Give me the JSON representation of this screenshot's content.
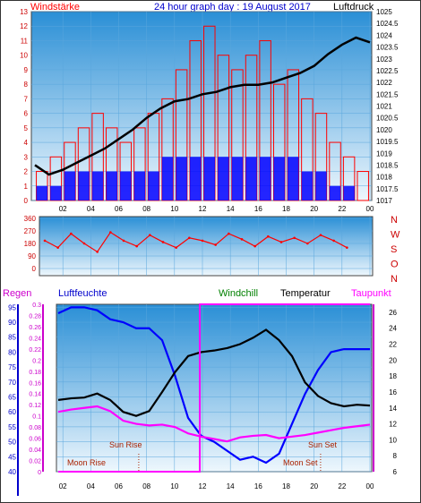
{
  "header": {
    "title": "24 hour graph day : 19 August 2017",
    "left_label": "Windstärke",
    "right_label": "Luftdruck"
  },
  "legend": {
    "regen": "Regen",
    "luftfeuchte": "Luftfeuchte",
    "windchill": "Windchill",
    "temperatur": "Temperatur",
    "taupunkt": "Taupunkt"
  },
  "annotations": {
    "moon_rise": "Moon Rise",
    "sun_rise": "Sun Rise",
    "moon_set": "Moon Set",
    "sun_set": "Sun Set"
  },
  "colors": {
    "wind_gust": "#ff0000",
    "wind_avg": "#0000ff",
    "pressure": "#000000",
    "direction": "#ff0000",
    "humidity": "#0000ff",
    "temperature": "#000000",
    "dewpoint": "#ff00ff",
    "windchill": "#008000",
    "rain": "#ff00ff",
    "sky_top": "#2a8fd6",
    "sky_bottom": "#eef7fd"
  },
  "chart_data": [
    {
      "type": "bar",
      "title": "24 hour graph day : 19 August 2017",
      "x_ticks": [
        "02",
        "04",
        "06",
        "08",
        "10",
        "12",
        "14",
        "16",
        "18",
        "20",
        "22",
        "00"
      ],
      "left_axis": {
        "label": "Windstärke",
        "ticks": [
          "0",
          "1",
          "2",
          "3",
          "4",
          "5",
          "6",
          "7",
          "8",
          "9",
          "10",
          "11",
          "12",
          "13"
        ],
        "ylim": [
          0,
          13
        ]
      },
      "right_axis": {
        "label": "Luftdruck",
        "ticks": [
          "1017",
          "1017.5",
          "1018",
          "1018.5",
          "1019",
          "1019.5",
          "1020",
          "1020.5",
          "1021",
          "1021.5",
          "1022",
          "1022.5",
          "1023",
          "1023.5",
          "1024",
          "1024.5",
          "1025"
        ],
        "ylim": [
          1017,
          1025
        ]
      },
      "series": [
        {
          "name": "Windstärke",
          "points": [
            [
              0,
              2
            ],
            [
              1,
              3
            ],
            [
              2,
              4
            ],
            [
              3,
              5
            ],
            [
              4,
              6
            ],
            [
              5,
              5
            ],
            [
              6,
              4
            ],
            [
              7,
              5
            ],
            [
              8,
              6
            ],
            [
              9,
              7
            ],
            [
              10,
              9
            ],
            [
              11,
              11
            ],
            [
              12,
              12
            ],
            [
              13,
              10
            ],
            [
              14,
              9
            ],
            [
              15,
              10
            ],
            [
              16,
              11
            ],
            [
              17,
              8
            ],
            [
              18,
              9
            ],
            [
              19,
              7
            ],
            [
              20,
              6
            ],
            [
              21,
              4
            ],
            [
              22,
              3
            ],
            [
              23,
              2
            ]
          ]
        },
        {
          "points": [
            [
              0,
              1
            ],
            [
              1,
              1
            ],
            [
              2,
              2
            ],
            [
              3,
              2
            ],
            [
              4,
              2
            ],
            [
              5,
              2
            ],
            [
              6,
              2
            ],
            [
              7,
              2
            ],
            [
              8,
              2
            ],
            [
              9,
              3
            ],
            [
              10,
              3
            ],
            [
              11,
              3
            ],
            [
              12,
              3
            ],
            [
              13,
              3
            ],
            [
              14,
              3
            ],
            [
              15,
              3
            ],
            [
              16,
              3
            ],
            [
              17,
              3
            ],
            [
              18,
              3
            ],
            [
              19,
              2
            ],
            [
              20,
              2
            ],
            [
              21,
              1
            ],
            [
              22,
              1
            ],
            [
              23,
              0
            ]
          ]
        },
        {
          "name": "Luftdruck",
          "points": [
            [
              0,
              1018.5
            ],
            [
              1,
              1018.1
            ],
            [
              2,
              1018.3
            ],
            [
              3,
              1018.6
            ],
            [
              4,
              1018.9
            ],
            [
              5,
              1019.2
            ],
            [
              6,
              1019.6
            ],
            [
              7,
              1020.0
            ],
            [
              8,
              1020.5
            ],
            [
              9,
              1020.9
            ],
            [
              10,
              1021.2
            ],
            [
              11,
              1021.3
            ],
            [
              12,
              1021.5
            ],
            [
              13,
              1021.6
            ],
            [
              14,
              1021.8
            ],
            [
              15,
              1021.9
            ],
            [
              16,
              1021.9
            ],
            [
              17,
              1022.0
            ],
            [
              18,
              1022.2
            ],
            [
              19,
              1022.4
            ],
            [
              20,
              1022.7
            ],
            [
              21,
              1023.2
            ],
            [
              22,
              1023.6
            ],
            [
              23,
              1023.9
            ],
            [
              24,
              1023.7
            ]
          ]
        }
      ]
    },
    {
      "type": "scatter",
      "x_ticks": [
        "02",
        "04",
        "06",
        "08",
        "10",
        "12",
        "14",
        "16",
        "18",
        "20",
        "22",
        "00"
      ],
      "left_axis": {
        "ticks": [
          "0",
          "90",
          "180",
          "270",
          "360"
        ],
        "ylim": [
          0,
          360
        ]
      },
      "right_labels": [
        "N",
        "W",
        "S",
        "O",
        "N"
      ],
      "series": [
        {
          "points": [
            [
              0,
              200
            ],
            [
              1,
              150
            ],
            [
              2,
              250
            ],
            [
              3,
              180
            ],
            [
              4,
              120
            ],
            [
              5,
              260
            ],
            [
              6,
              200
            ],
            [
              7,
              160
            ],
            [
              8,
              240
            ],
            [
              9,
              190
            ],
            [
              10,
              150
            ],
            [
              11,
              220
            ],
            [
              12,
              200
            ],
            [
              13,
              170
            ],
            [
              14,
              250
            ],
            [
              15,
              210
            ],
            [
              16,
              160
            ],
            [
              17,
              230
            ],
            [
              18,
              190
            ],
            [
              19,
              220
            ],
            [
              20,
              180
            ],
            [
              21,
              240
            ],
            [
              22,
              200
            ],
            [
              23,
              150
            ]
          ]
        }
      ]
    },
    {
      "type": "line",
      "x_ticks": [
        "02",
        "04",
        "06",
        "08",
        "10",
        "12",
        "14",
        "16",
        "18",
        "20",
        "22",
        "00"
      ],
      "axes": {
        "humidity": {
          "label": "Luftfeuchte",
          "ticks": [
            "40",
            "45",
            "50",
            "55",
            "60",
            "65",
            "70",
            "75",
            "80",
            "85",
            "90",
            "95"
          ],
          "ylim": [
            40,
            96
          ]
        },
        "rain": {
          "label": "Regen",
          "ticks": [
            "0",
            "0.02",
            "0.04",
            "0.06",
            "0.08",
            "0.1",
            "0.12",
            "0.14",
            "0.16",
            "0.18",
            "0.2",
            "0.22",
            "0.24",
            "0.26",
            "0.28",
            "0.3"
          ],
          "ylim": [
            0,
            0.3
          ]
        },
        "temperature": {
          "label": "Temperatur",
          "ticks": [
            "6",
            "8",
            "10",
            "12",
            "14",
            "16",
            "18",
            "20",
            "22",
            "24",
            "26"
          ],
          "ylim": [
            6,
            27
          ]
        }
      },
      "series": [
        {
          "name": "Luftfeuchte",
          "axis": "humidity",
          "points": [
            [
              0,
              93
            ],
            [
              1,
              95
            ],
            [
              2,
              95
            ],
            [
              3,
              94
            ],
            [
              4,
              91
            ],
            [
              5,
              90
            ],
            [
              6,
              88
            ],
            [
              7,
              88
            ],
            [
              8,
              84
            ],
            [
              9,
              72
            ],
            [
              10,
              58
            ],
            [
              11,
              52
            ],
            [
              12,
              50
            ],
            [
              13,
              47
            ],
            [
              14,
              44
            ],
            [
              15,
              45
            ],
            [
              16,
              43
            ],
            [
              17,
              46
            ],
            [
              18,
              56
            ],
            [
              19,
              66
            ],
            [
              20,
              74
            ],
            [
              21,
              80
            ],
            [
              22,
              81
            ],
            [
              23,
              81
            ],
            [
              24,
              81
            ]
          ]
        },
        {
          "name": "Temperatur",
          "axis": "temperature",
          "points": [
            [
              0,
              15
            ],
            [
              1,
              15.2
            ],
            [
              2,
              15.3
            ],
            [
              3,
              15.8
            ],
            [
              4,
              15
            ],
            [
              5,
              13.5
            ],
            [
              6,
              13
            ],
            [
              7,
              13.6
            ],
            [
              8,
              16
            ],
            [
              9,
              18.5
            ],
            [
              10,
              20.5
            ],
            [
              11,
              21
            ],
            [
              12,
              21.2
            ],
            [
              13,
              21.5
            ],
            [
              14,
              22
            ],
            [
              15,
              22.8
            ],
            [
              16,
              23.8
            ],
            [
              17,
              22.5
            ],
            [
              18,
              20.5
            ],
            [
              19,
              17.2
            ],
            [
              20,
              15.5
            ],
            [
              21,
              14.6
            ],
            [
              22,
              14.2
            ],
            [
              23,
              14.4
            ],
            [
              24,
              14.3
            ]
          ]
        },
        {
          "name": "Taupunkt",
          "axis": "temperature",
          "points": [
            [
              0,
              13.5
            ],
            [
              1,
              13.8
            ],
            [
              2,
              14
            ],
            [
              3,
              14.2
            ],
            [
              4,
              13.6
            ],
            [
              5,
              12.4
            ],
            [
              6,
              12
            ],
            [
              7,
              11.8
            ],
            [
              8,
              11.9
            ],
            [
              9,
              11.6
            ],
            [
              10,
              10.8
            ],
            [
              11,
              10.4
            ],
            [
              12,
              10.1
            ],
            [
              13,
              9.8
            ],
            [
              14,
              10.3
            ],
            [
              15,
              10.5
            ],
            [
              16,
              10.6
            ],
            [
              17,
              10.2
            ],
            [
              18,
              10.4
            ],
            [
              19,
              10.6
            ],
            [
              20,
              10.9
            ],
            [
              21,
              11.2
            ],
            [
              22,
              11.5
            ],
            [
              23,
              11.7
            ],
            [
              24,
              11.9
            ]
          ]
        },
        {
          "name": "Regen",
          "axis": "rain",
          "points": [
            [
              0,
              0
            ],
            [
              10.9,
              0
            ],
            [
              10.9,
              0.3
            ],
            [
              24,
              0.3
            ]
          ]
        }
      ]
    }
  ]
}
